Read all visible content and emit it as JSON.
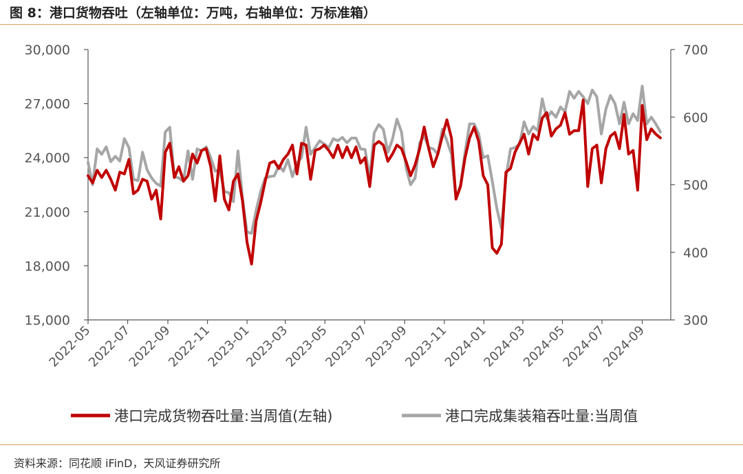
{
  "figure": {
    "title": "图 8：港口货物吞吐（左轴单位：万吨，右轴单位：万标准箱）",
    "source": "资料来源：同花顺 iFinD，天风证券研究所"
  },
  "colors": {
    "accent_rule": "#d9a05b",
    "series_red": "#c00000",
    "series_gray": "#a6a6a6",
    "axis": "#555555"
  },
  "chart_data": {
    "type": "line",
    "y_left": {
      "min": 15000,
      "max": 30000,
      "ticks": [
        15000,
        18000,
        21000,
        24000,
        27000,
        30000
      ],
      "tick_labels": [
        "15,000",
        "18,000",
        "21,000",
        "24,000",
        "27,000",
        "30,000"
      ]
    },
    "y_right": {
      "min": 300,
      "max": 700,
      "ticks": [
        300,
        400,
        500,
        600,
        700
      ],
      "tick_labels": [
        "300",
        "400",
        "500",
        "600",
        "700"
      ]
    },
    "x_range": [
      "2022-05-01",
      "2024-10-15"
    ],
    "x_ticks": [
      "2022-05",
      "2022-07",
      "2022-09",
      "2022-11",
      "2023-01",
      "2023-03",
      "2023-05",
      "2023-07",
      "2023-09",
      "2023-11",
      "2024-01",
      "2024-03",
      "2024-05",
      "2024-07",
      "2024-09"
    ],
    "series": [
      {
        "name": "港口完成货物吞吐量:当周值(左轴)",
        "axis": "left",
        "points": [
          [
            "2022-05-01",
            23000
          ],
          [
            "2022-05-08",
            22600
          ],
          [
            "2022-05-15",
            23300
          ],
          [
            "2022-05-22",
            22900
          ],
          [
            "2022-05-29",
            23300
          ],
          [
            "2022-06-05",
            22800
          ],
          [
            "2022-06-12",
            22200
          ],
          [
            "2022-06-19",
            23200
          ],
          [
            "2022-06-26",
            23100
          ],
          [
            "2022-07-03",
            23900
          ],
          [
            "2022-07-10",
            22000
          ],
          [
            "2022-07-17",
            22200
          ],
          [
            "2022-07-24",
            22800
          ],
          [
            "2022-07-31",
            22700
          ],
          [
            "2022-08-07",
            21700
          ],
          [
            "2022-08-14",
            22200
          ],
          [
            "2022-08-21",
            20600
          ],
          [
            "2022-08-28",
            24300
          ],
          [
            "2022-09-04",
            24800
          ],
          [
            "2022-09-11",
            22900
          ],
          [
            "2022-09-18",
            23500
          ],
          [
            "2022-09-25",
            22700
          ],
          [
            "2022-10-02",
            23000
          ],
          [
            "2022-10-09",
            24200
          ],
          [
            "2022-10-16",
            23700
          ],
          [
            "2022-10-23",
            24400
          ],
          [
            "2022-10-30",
            24500
          ],
          [
            "2022-11-06",
            23500
          ],
          [
            "2022-11-13",
            21600
          ],
          [
            "2022-11-20",
            24100
          ],
          [
            "2022-11-27",
            21700
          ],
          [
            "2022-12-04",
            21100
          ],
          [
            "2022-12-11",
            22700
          ],
          [
            "2022-12-18",
            23100
          ],
          [
            "2022-12-25",
            21600
          ],
          [
            "2023-01-01",
            19300
          ],
          [
            "2023-01-08",
            18100
          ],
          [
            "2023-01-15",
            20500
          ],
          [
            "2023-01-22",
            21500
          ],
          [
            "2023-01-29",
            22700
          ],
          [
            "2023-02-05",
            23700
          ],
          [
            "2023-02-12",
            23800
          ],
          [
            "2023-02-19",
            23400
          ],
          [
            "2023-02-26",
            23900
          ],
          [
            "2023-03-05",
            24200
          ],
          [
            "2023-03-12",
            24700
          ],
          [
            "2023-03-19",
            23100
          ],
          [
            "2023-03-26",
            24800
          ],
          [
            "2023-04-02",
            24700
          ],
          [
            "2023-04-09",
            22800
          ],
          [
            "2023-04-16",
            24400
          ],
          [
            "2023-04-23",
            24500
          ],
          [
            "2023-04-30",
            24700
          ],
          [
            "2023-05-07",
            24400
          ],
          [
            "2023-05-14",
            24000
          ],
          [
            "2023-05-21",
            24700
          ],
          [
            "2023-05-28",
            24000
          ],
          [
            "2023-06-04",
            24600
          ],
          [
            "2023-06-11",
            24000
          ],
          [
            "2023-06-18",
            24600
          ],
          [
            "2023-06-25",
            23700
          ],
          [
            "2023-07-02",
            24000
          ],
          [
            "2023-07-09",
            22400
          ],
          [
            "2023-07-16",
            24700
          ],
          [
            "2023-07-23",
            24900
          ],
          [
            "2023-07-30",
            24700
          ],
          [
            "2023-08-06",
            23800
          ],
          [
            "2023-08-13",
            24200
          ],
          [
            "2023-08-20",
            24700
          ],
          [
            "2023-08-27",
            24500
          ],
          [
            "2023-09-03",
            23800
          ],
          [
            "2023-09-10",
            23000
          ],
          [
            "2023-09-17",
            23600
          ],
          [
            "2023-09-24",
            24500
          ],
          [
            "2023-10-01",
            25700
          ],
          [
            "2023-10-08",
            24500
          ],
          [
            "2023-10-15",
            23500
          ],
          [
            "2023-10-22",
            24200
          ],
          [
            "2023-10-29",
            25200
          ],
          [
            "2023-11-05",
            26100
          ],
          [
            "2023-11-12",
            25100
          ],
          [
            "2023-11-19",
            21700
          ],
          [
            "2023-11-26",
            22400
          ],
          [
            "2023-12-03",
            24000
          ],
          [
            "2023-12-10",
            25100
          ],
          [
            "2023-12-17",
            25700
          ],
          [
            "2023-12-24",
            24900
          ],
          [
            "2023-12-31",
            23000
          ],
          [
            "2024-01-07",
            22500
          ],
          [
            "2024-01-14",
            19000
          ],
          [
            "2024-01-21",
            18700
          ],
          [
            "2024-01-28",
            19200
          ],
          [
            "2024-02-04",
            23200
          ],
          [
            "2024-02-11",
            23400
          ],
          [
            "2024-02-18",
            24300
          ],
          [
            "2024-02-25",
            24800
          ],
          [
            "2024-03-03",
            25300
          ],
          [
            "2024-03-10",
            24200
          ],
          [
            "2024-03-17",
            25300
          ],
          [
            "2024-03-24",
            25000
          ],
          [
            "2024-03-31",
            26200
          ],
          [
            "2024-04-07",
            26500
          ],
          [
            "2024-04-14",
            25200
          ],
          [
            "2024-04-21",
            25600
          ],
          [
            "2024-04-28",
            25800
          ],
          [
            "2024-05-05",
            26500
          ],
          [
            "2024-05-12",
            25300
          ],
          [
            "2024-05-19",
            25500
          ],
          [
            "2024-05-26",
            25500
          ],
          [
            "2024-06-02",
            27200
          ],
          [
            "2024-06-09",
            22400
          ],
          [
            "2024-06-16",
            24500
          ],
          [
            "2024-06-23",
            24700
          ],
          [
            "2024-06-30",
            22600
          ],
          [
            "2024-07-07",
            24500
          ],
          [
            "2024-07-14",
            25200
          ],
          [
            "2024-07-21",
            25400
          ],
          [
            "2024-07-28",
            24500
          ],
          [
            "2024-08-04",
            26400
          ],
          [
            "2024-08-11",
            24200
          ],
          [
            "2024-08-18",
            24400
          ],
          [
            "2024-08-25",
            22200
          ],
          [
            "2024-09-01",
            26900
          ],
          [
            "2024-09-08",
            25000
          ],
          [
            "2024-09-15",
            25600
          ],
          [
            "2024-09-22",
            25300
          ],
          [
            "2024-09-29",
            25100
          ]
        ]
      },
      {
        "name": "港口完成集装箱吞吐量:当周值",
        "axis": "right",
        "points": [
          [
            "2022-05-01",
            533
          ],
          [
            "2022-05-08",
            500
          ],
          [
            "2022-05-15",
            553
          ],
          [
            "2022-05-22",
            545
          ],
          [
            "2022-05-29",
            556
          ],
          [
            "2022-06-05",
            534
          ],
          [
            "2022-06-12",
            542
          ],
          [
            "2022-06-19",
            535
          ],
          [
            "2022-06-26",
            568
          ],
          [
            "2022-07-03",
            555
          ],
          [
            "2022-07-10",
            508
          ],
          [
            "2022-07-17",
            506
          ],
          [
            "2022-07-24",
            548
          ],
          [
            "2022-07-31",
            522
          ],
          [
            "2022-08-07",
            510
          ],
          [
            "2022-08-14",
            502
          ],
          [
            "2022-08-21",
            498
          ],
          [
            "2022-08-28",
            578
          ],
          [
            "2022-09-04",
            585
          ],
          [
            "2022-09-11",
            512
          ],
          [
            "2022-09-18",
            510
          ],
          [
            "2022-09-25",
            505
          ],
          [
            "2022-10-02",
            550
          ],
          [
            "2022-10-09",
            508
          ],
          [
            "2022-10-16",
            553
          ],
          [
            "2022-10-23",
            550
          ],
          [
            "2022-10-30",
            556
          ],
          [
            "2022-11-06",
            540
          ],
          [
            "2022-11-13",
            520
          ],
          [
            "2022-11-20",
            522
          ],
          [
            "2022-11-27",
            490
          ],
          [
            "2022-12-04",
            488
          ],
          [
            "2022-12-11",
            475
          ],
          [
            "2022-12-18",
            550
          ],
          [
            "2022-12-25",
            480
          ],
          [
            "2023-01-01",
            430
          ],
          [
            "2023-01-08",
            428
          ],
          [
            "2023-01-15",
            462
          ],
          [
            "2023-01-22",
            490
          ],
          [
            "2023-01-29",
            510
          ],
          [
            "2023-02-05",
            512
          ],
          [
            "2023-02-12",
            513
          ],
          [
            "2023-02-19",
            528
          ],
          [
            "2023-02-26",
            520
          ],
          [
            "2023-03-05",
            537
          ],
          [
            "2023-03-12",
            512
          ],
          [
            "2023-03-19",
            532
          ],
          [
            "2023-03-26",
            540
          ],
          [
            "2023-04-02",
            585
          ],
          [
            "2023-04-09",
            545
          ],
          [
            "2023-04-16",
            555
          ],
          [
            "2023-04-23",
            565
          ],
          [
            "2023-04-30",
            560
          ],
          [
            "2023-05-07",
            555
          ],
          [
            "2023-05-14",
            568
          ],
          [
            "2023-05-21",
            565
          ],
          [
            "2023-05-28",
            570
          ],
          [
            "2023-06-04",
            562
          ],
          [
            "2023-06-11",
            569
          ],
          [
            "2023-06-18",
            569
          ],
          [
            "2023-06-25",
            553
          ],
          [
            "2023-07-02",
            552
          ],
          [
            "2023-07-09",
            510
          ],
          [
            "2023-07-16",
            577
          ],
          [
            "2023-07-23",
            589
          ],
          [
            "2023-07-30",
            582
          ],
          [
            "2023-08-06",
            548
          ],
          [
            "2023-08-13",
            567
          ],
          [
            "2023-08-20",
            597
          ],
          [
            "2023-08-27",
            578
          ],
          [
            "2023-09-03",
            525
          ],
          [
            "2023-09-10",
            500
          ],
          [
            "2023-09-17",
            510
          ],
          [
            "2023-09-24",
            562
          ],
          [
            "2023-10-01",
            572
          ],
          [
            "2023-10-08",
            555
          ],
          [
            "2023-10-15",
            553
          ],
          [
            "2023-10-22",
            545
          ],
          [
            "2023-10-29",
            582
          ],
          [
            "2023-11-05",
            565
          ],
          [
            "2023-11-12",
            545
          ],
          [
            "2023-11-19",
            480
          ],
          [
            "2023-11-26",
            500
          ],
          [
            "2023-12-03",
            548
          ],
          [
            "2023-12-10",
            590
          ],
          [
            "2023-12-17",
            590
          ],
          [
            "2023-12-24",
            575
          ],
          [
            "2023-12-31",
            540
          ],
          [
            "2024-01-07",
            543
          ],
          [
            "2024-01-14",
            505
          ],
          [
            "2024-01-21",
            465
          ],
          [
            "2024-01-28",
            436
          ],
          [
            "2024-02-04",
            510
          ],
          [
            "2024-02-11",
            553
          ],
          [
            "2024-02-18",
            555
          ],
          [
            "2024-02-25",
            560
          ],
          [
            "2024-03-03",
            593
          ],
          [
            "2024-03-10",
            575
          ],
          [
            "2024-03-17",
            586
          ],
          [
            "2024-03-24",
            580
          ],
          [
            "2024-03-31",
            627
          ],
          [
            "2024-04-07",
            598
          ],
          [
            "2024-04-14",
            608
          ],
          [
            "2024-04-21",
            600
          ],
          [
            "2024-04-28",
            615
          ],
          [
            "2024-05-05",
            608
          ],
          [
            "2024-05-12",
            638
          ],
          [
            "2024-05-19",
            628
          ],
          [
            "2024-05-26",
            638
          ],
          [
            "2024-06-02",
            630
          ],
          [
            "2024-06-09",
            620
          ],
          [
            "2024-06-16",
            640
          ],
          [
            "2024-06-23",
            630
          ],
          [
            "2024-06-30",
            575
          ],
          [
            "2024-07-07",
            612
          ],
          [
            "2024-07-14",
            632
          ],
          [
            "2024-07-21",
            620
          ],
          [
            "2024-07-28",
            590
          ],
          [
            "2024-08-04",
            622
          ],
          [
            "2024-08-11",
            590
          ],
          [
            "2024-08-18",
            605
          ],
          [
            "2024-08-25",
            595
          ],
          [
            "2024-09-01",
            646
          ],
          [
            "2024-09-08",
            590
          ],
          [
            "2024-09-15",
            600
          ],
          [
            "2024-09-22",
            590
          ],
          [
            "2024-09-29",
            578
          ]
        ]
      }
    ],
    "legend_position": "bottom",
    "grid": false
  }
}
